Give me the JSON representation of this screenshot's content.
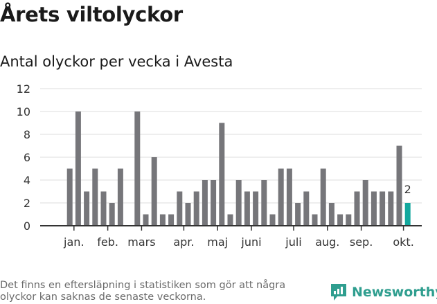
{
  "header": {
    "title": "Årets viltolyckor",
    "subtitle": "Antal olyckor per vecka i Avesta"
  },
  "footer": {
    "note": "Det finns en eftersläpning i statistiken som gör att några olyckor kan saknas de senaste veckorna.",
    "brand": "Newsworthy"
  },
  "colors": {
    "bar": "#76767a",
    "highlight": "#13a89e",
    "grid": "#dedede",
    "axis": "#333333",
    "brand": "#2f9e8f"
  },
  "chart_data": {
    "type": "bar",
    "title": "Antal olyckor per vecka i Avesta",
    "xlabel": "",
    "ylabel": "",
    "ylim": [
      0,
      12
    ],
    "yticks": [
      0,
      2,
      4,
      6,
      8,
      10,
      12
    ],
    "grid": true,
    "values": [
      null,
      5,
      10,
      3,
      5,
      3,
      2,
      5,
      null,
      10,
      1,
      6,
      1,
      1,
      3,
      2,
      3,
      4,
      4,
      9,
      1,
      4,
      3,
      3,
      4,
      1,
      5,
      5,
      2,
      3,
      1,
      5,
      2,
      1,
      1,
      3,
      4,
      3,
      3,
      3,
      7,
      2
    ],
    "highlight_index": 41,
    "highlight_label": "2",
    "month_labels": [
      {
        "label": "jan.",
        "index": 1.5
      },
      {
        "label": "feb.",
        "index": 5.5
      },
      {
        "label": "mars",
        "index": 9.5
      },
      {
        "label": "apr.",
        "index": 14.5
      },
      {
        "label": "maj",
        "index": 18.5
      },
      {
        "label": "juni",
        "index": 22.5
      },
      {
        "label": "juli",
        "index": 27.5
      },
      {
        "label": "aug.",
        "index": 31.5
      },
      {
        "label": "sep.",
        "index": 35.5
      },
      {
        "label": "okt.",
        "index": 40.5
      }
    ]
  }
}
